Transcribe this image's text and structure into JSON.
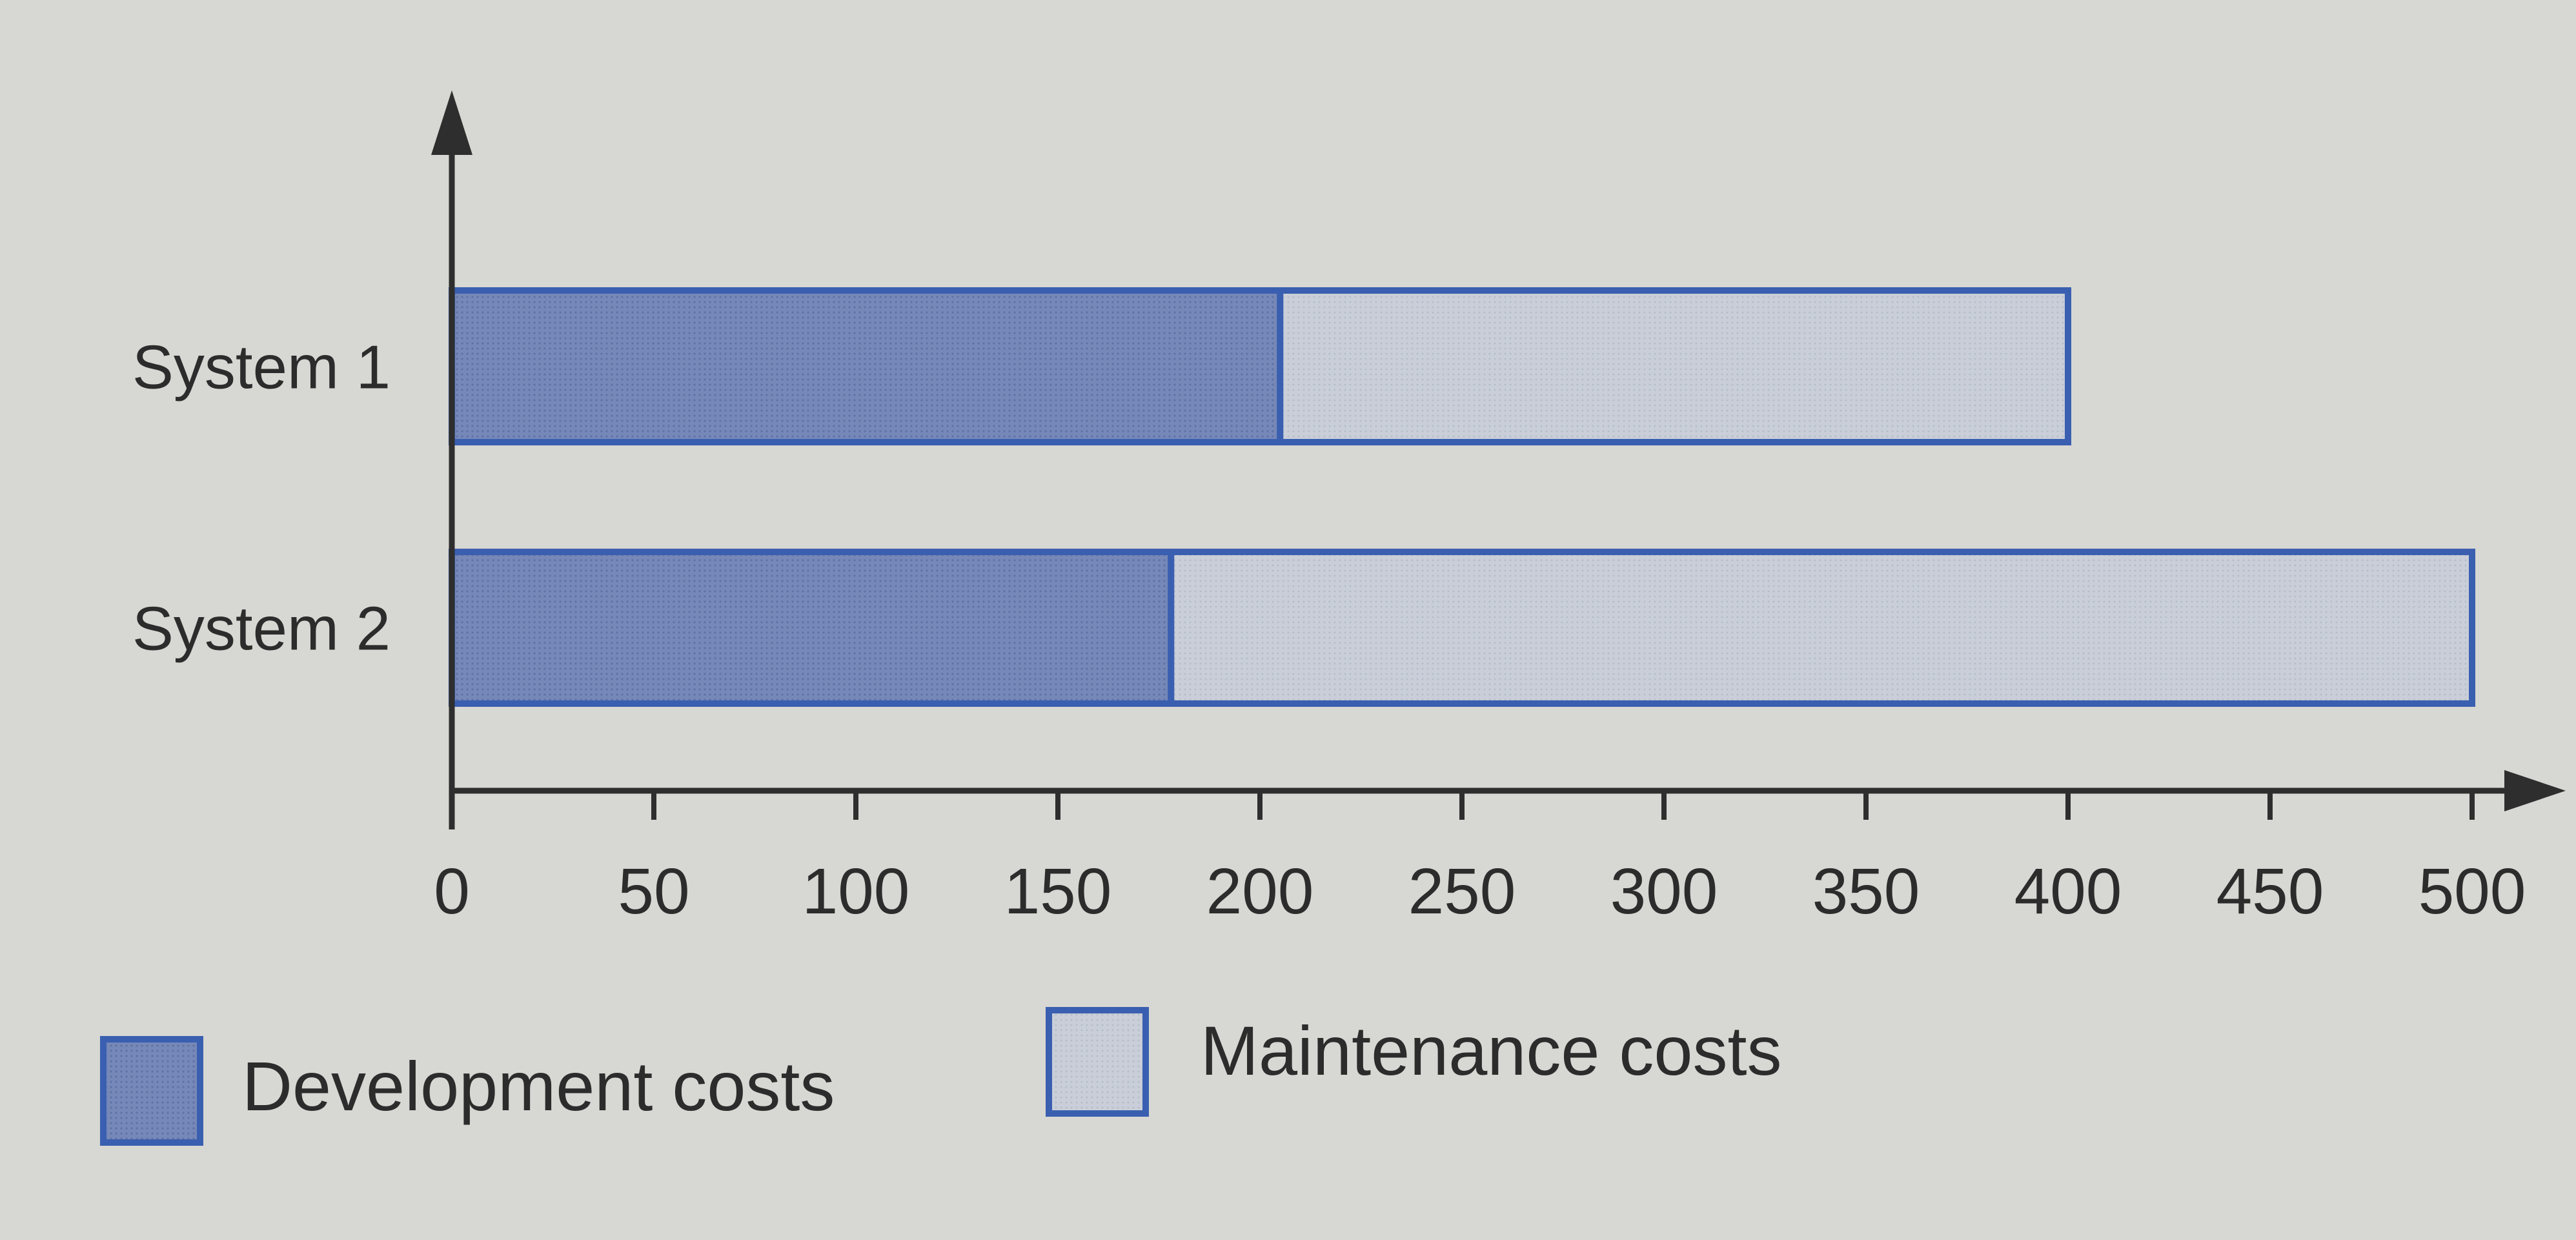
{
  "chart_data": {
    "type": "bar",
    "orientation": "horizontal",
    "stacked": true,
    "categories": [
      "System 1",
      "System 2"
    ],
    "series": [
      {
        "name": "Development costs",
        "values": [
          205,
          178
        ]
      },
      {
        "name": "Maintenance costs",
        "values": [
          195,
          322
        ]
      }
    ],
    "xlim": [
      0,
      500
    ],
    "xticks": [
      "0",
      "50",
      "100",
      "150",
      "200",
      "250",
      "300",
      "350",
      "400",
      "450",
      "500"
    ],
    "title": "",
    "xlabel": "",
    "ylabel": "",
    "grid": false,
    "legend_position": "bottom-left",
    "colors": {
      "development": "#7688b8",
      "maintenance": "#c9ced8",
      "outline": "#3a5fb0",
      "axis": "#2e2e2e",
      "background": "#d7d7d3"
    }
  }
}
